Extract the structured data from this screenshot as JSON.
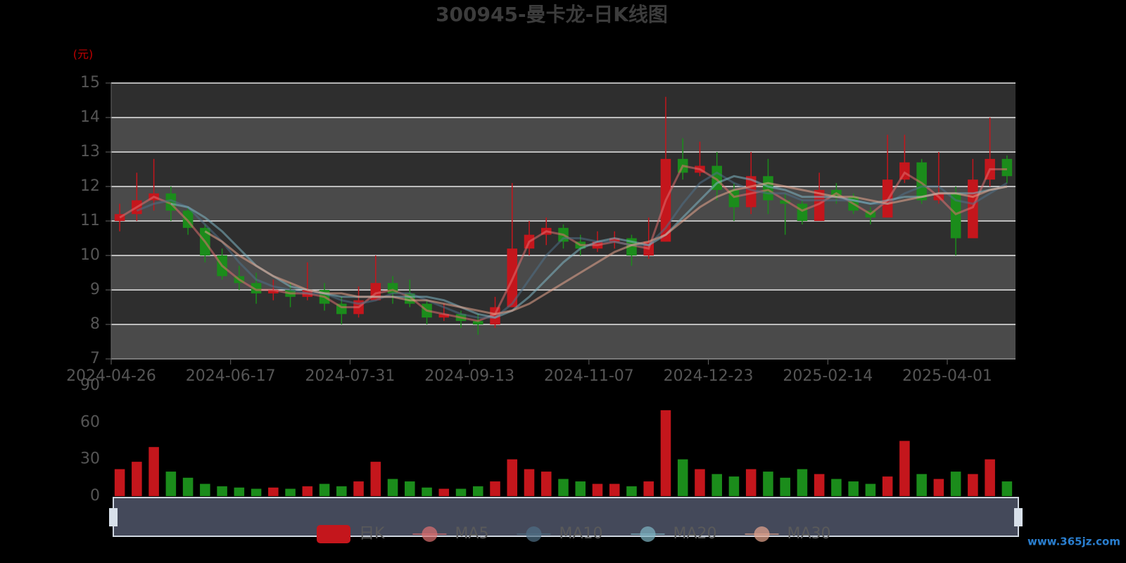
{
  "chart_data": [
    {
      "type": "candlestick",
      "title": "300945-曼卡龙-日K线图",
      "y_unit": "(元)",
      "watermark": "www.365jz.com",
      "categories": [
        "2024-04-26",
        null,
        null,
        null,
        null,
        null,
        null,
        "2024-06-17",
        null,
        null,
        null,
        null,
        null,
        null,
        "2024-07-31",
        null,
        null,
        null,
        null,
        null,
        null,
        "2024-09-13",
        null,
        null,
        null,
        null,
        null,
        null,
        "2024-11-07",
        null,
        null,
        null,
        null,
        null,
        null,
        "2024-12-23",
        null,
        null,
        null,
        null,
        null,
        null,
        "2025-02-14",
        null,
        null,
        null,
        null,
        null,
        null,
        "2025-04-01",
        null,
        null,
        null
      ],
      "ylim": [
        7,
        15
      ],
      "yticks": [
        7,
        8,
        9,
        10,
        11,
        12,
        13,
        14,
        15
      ],
      "split_area": true,
      "grid": true,
      "up_color": "#c4161c",
      "down_color": "#1b8c1b",
      "series": [
        {
          "name": "日K",
          "type": "candlestick",
          "color": "#c4161c",
          "values": [
            [
              11.0,
              11.2,
              10.7,
              11.5
            ],
            [
              11.2,
              11.6,
              11.0,
              12.4
            ],
            [
              11.6,
              11.8,
              11.3,
              12.8
            ],
            [
              11.8,
              11.3,
              11.0,
              12.0
            ],
            [
              11.3,
              10.8,
              10.6,
              11.4
            ],
            [
              10.8,
              10.0,
              9.8,
              10.9
            ],
            [
              10.0,
              9.4,
              9.3,
              10.2
            ],
            [
              9.4,
              9.2,
              9.0,
              9.7
            ],
            [
              9.2,
              8.9,
              8.6,
              9.5
            ],
            [
              8.9,
              9.0,
              8.7,
              9.3
            ],
            [
              9.0,
              8.8,
              8.5,
              9.2
            ],
            [
              8.8,
              9.0,
              8.7,
              9.8
            ],
            [
              9.0,
              8.6,
              8.4,
              9.2
            ],
            [
              8.6,
              8.3,
              8.0,
              8.8
            ],
            [
              8.3,
              8.7,
              8.2,
              9.1
            ],
            [
              8.7,
              9.2,
              8.7,
              10.0
            ],
            [
              9.2,
              8.9,
              8.6,
              9.4
            ],
            [
              8.9,
              8.6,
              8.5,
              9.3
            ],
            [
              8.6,
              8.2,
              8.0,
              8.7
            ],
            [
              8.2,
              8.3,
              8.1,
              8.6
            ],
            [
              8.3,
              8.1,
              7.9,
              8.4
            ],
            [
              8.1,
              8.0,
              7.7,
              8.3
            ],
            [
              8.0,
              8.5,
              7.9,
              8.8
            ],
            [
              8.5,
              10.2,
              8.5,
              12.1
            ],
            [
              10.2,
              10.6,
              10.0,
              11.0
            ],
            [
              10.6,
              10.8,
              10.3,
              11.1
            ],
            [
              10.8,
              10.4,
              10.2,
              10.9
            ],
            [
              10.4,
              10.2,
              10.0,
              10.6
            ],
            [
              10.2,
              10.4,
              10.1,
              10.7
            ],
            [
              10.4,
              10.5,
              10.2,
              10.7
            ],
            [
              10.5,
              10.0,
              9.7,
              10.6
            ],
            [
              10.0,
              10.4,
              9.9,
              11.1
            ],
            [
              10.4,
              12.8,
              10.4,
              14.6
            ],
            [
              12.8,
              12.4,
              12.2,
              13.4
            ],
            [
              12.4,
              12.6,
              12.3,
              13.3
            ],
            [
              12.6,
              11.9,
              11.6,
              13.0
            ],
            [
              11.9,
              11.4,
              11.0,
              12.1
            ],
            [
              11.4,
              12.3,
              11.2,
              13.0
            ],
            [
              12.3,
              11.6,
              11.2,
              12.8
            ],
            [
              11.6,
              11.5,
              10.6,
              11.8
            ],
            [
              11.5,
              11.0,
              10.9,
              11.6
            ],
            [
              11.0,
              11.9,
              11.0,
              12.4
            ],
            [
              11.9,
              11.7,
              11.5,
              12.1
            ],
            [
              11.7,
              11.3,
              11.2,
              11.8
            ],
            [
              11.3,
              11.1,
              10.9,
              11.4
            ],
            [
              11.1,
              12.2,
              11.1,
              13.5
            ],
            [
              12.2,
              12.7,
              12.1,
              13.5
            ],
            [
              12.7,
              11.6,
              11.5,
              12.8
            ],
            [
              11.6,
              11.8,
              11.5,
              13.0
            ],
            [
              11.8,
              10.5,
              10.0,
              12.0
            ],
            [
              10.5,
              12.2,
              10.5,
              12.8
            ],
            [
              12.2,
              12.8,
              12.0,
              14.0
            ],
            [
              12.8,
              12.3,
              12.1,
              12.9
            ]
          ]
        },
        {
          "name": "MA5",
          "type": "line",
          "color": "#e07070",
          "values": [
            11.1,
            11.4,
            11.7,
            11.5,
            11.0,
            10.4,
            9.7,
            9.3,
            9.0,
            9.0,
            8.9,
            8.9,
            8.8,
            8.5,
            8.5,
            8.9,
            9.0,
            8.8,
            8.4,
            8.3,
            8.2,
            8.1,
            8.3,
            9.3,
            10.4,
            10.7,
            10.6,
            10.3,
            10.3,
            10.4,
            10.3,
            10.2,
            11.6,
            12.6,
            12.5,
            12.2,
            11.7,
            11.8,
            11.9,
            11.6,
            11.3,
            11.5,
            11.8,
            11.5,
            11.2,
            11.6,
            12.4,
            12.1,
            11.7,
            11.2,
            11.4,
            12.5,
            12.5
          ]
        },
        {
          "name": "MA10",
          "type": "line",
          "color": "#4f6f86",
          "values": [
            null,
            11.3,
            11.5,
            11.6,
            11.4,
            10.9,
            10.4,
            9.8,
            9.3,
            9.1,
            9.0,
            8.9,
            8.9,
            8.7,
            8.6,
            8.7,
            8.9,
            8.9,
            8.7,
            8.5,
            8.3,
            8.2,
            8.2,
            8.6,
            9.3,
            10.0,
            10.5,
            10.5,
            10.4,
            10.4,
            10.3,
            10.3,
            10.8,
            11.5,
            12.1,
            12.4,
            12.1,
            11.9,
            11.8,
            11.8,
            11.6,
            11.6,
            11.6,
            11.6,
            11.5,
            11.5,
            11.8,
            12.0,
            12.0,
            11.6,
            11.5,
            11.8,
            12.1
          ]
        },
        {
          "name": "MA20",
          "type": "line",
          "color": "#7fb6c4",
          "values": [
            null,
            null,
            null,
            11.5,
            11.4,
            11.1,
            10.7,
            10.2,
            9.7,
            9.4,
            9.1,
            9.0,
            8.9,
            8.8,
            8.8,
            8.8,
            8.8,
            8.8,
            8.8,
            8.7,
            8.5,
            8.3,
            8.2,
            8.4,
            8.8,
            9.3,
            9.8,
            10.2,
            10.4,
            10.5,
            10.4,
            10.3,
            10.6,
            11.1,
            11.6,
            12.1,
            12.3,
            12.2,
            12.0,
            11.9,
            11.7,
            11.7,
            11.7,
            11.6,
            11.5,
            11.6,
            11.7,
            11.7,
            11.8,
            11.8,
            11.8,
            11.9,
            12.0
          ]
        },
        {
          "name": "MA30",
          "type": "line",
          "color": "#e8a68e",
          "values": [
            null,
            null,
            null,
            null,
            null,
            10.7,
            10.4,
            10.0,
            9.7,
            9.4,
            9.2,
            9.0,
            8.9,
            8.9,
            8.8,
            8.8,
            8.8,
            8.7,
            8.7,
            8.6,
            8.5,
            8.4,
            8.3,
            8.4,
            8.6,
            8.9,
            9.2,
            9.5,
            9.8,
            10.1,
            10.3,
            10.4,
            10.6,
            11.0,
            11.4,
            11.7,
            11.9,
            12.0,
            12.1,
            12.0,
            11.9,
            11.8,
            11.7,
            11.7,
            11.6,
            11.5,
            11.6,
            11.7,
            11.8,
            11.8,
            11.7,
            11.9,
            12.0
          ]
        }
      ]
    },
    {
      "type": "bar",
      "values": [
        22,
        28,
        40,
        20,
        15,
        10,
        8,
        7,
        6,
        7,
        6,
        8,
        10,
        8,
        12,
        28,
        14,
        12,
        7,
        6,
        6,
        8,
        12,
        30,
        22,
        20,
        14,
        12,
        10,
        10,
        8,
        12,
        70,
        30,
        22,
        18,
        16,
        22,
        20,
        15,
        22,
        18,
        14,
        12,
        10,
        16,
        45,
        18,
        14,
        20,
        18,
        30,
        12
      ],
      "ylim": [
        0,
        90
      ],
      "yticks": [
        0,
        30,
        60,
        90
      ]
    }
  ]
}
